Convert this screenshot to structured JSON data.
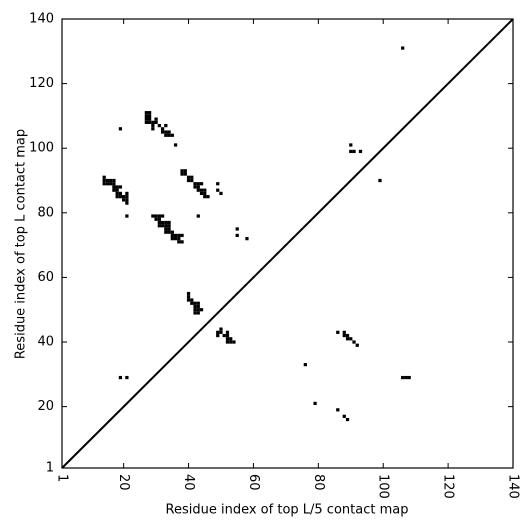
{
  "chart_data": {
    "type": "scatter",
    "xlabel": "Residue index of top L/5 contact map",
    "ylabel": "Residue index of top L contact map",
    "xlim": [
      1,
      140
    ],
    "ylim": [
      1,
      140
    ],
    "xticks": [
      1,
      20,
      40,
      60,
      80,
      100,
      120,
      140
    ],
    "yticks": [
      1,
      20,
      40,
      60,
      80,
      100,
      120,
      140
    ],
    "color": "#000000",
    "diagonal": true,
    "x": [
      27,
      28,
      27,
      28,
      27,
      28,
      27,
      28,
      29,
      30,
      30,
      29,
      29,
      31,
      32,
      33,
      32,
      33,
      34,
      33,
      34,
      35,
      19,
      36,
      90,
      90,
      91,
      93,
      99,
      106,
      14,
      14,
      15,
      16,
      17,
      14,
      15,
      16,
      17,
      17,
      18,
      17,
      18,
      19,
      18,
      19,
      18,
      19,
      20,
      21,
      21,
      20,
      21,
      21,
      21,
      38,
      39,
      38,
      39,
      40,
      40,
      41,
      41,
      42,
      42,
      43,
      44,
      43,
      43,
      44,
      45,
      44,
      45,
      45,
      46,
      49,
      49,
      50,
      43,
      29,
      30,
      31,
      32,
      30,
      31,
      31,
      32,
      33,
      34,
      31,
      32,
      33,
      34,
      33,
      34,
      33,
      34,
      35,
      35,
      36,
      37,
      38,
      35,
      36,
      37,
      37,
      38,
      55,
      55,
      58,
      40,
      40,
      40,
      41,
      41,
      42,
      43,
      42,
      43,
      42,
      43,
      44,
      42,
      43,
      50,
      49,
      50,
      52,
      49,
      51,
      52,
      52,
      53,
      52,
      53,
      54,
      76,
      86,
      88,
      88,
      89,
      89,
      90,
      91,
      92,
      19,
      21,
      106,
      107,
      108,
      79,
      86,
      88,
      89
    ],
    "y": [
      111,
      111,
      110,
      110,
      109,
      109,
      108,
      108,
      108,
      109,
      108,
      107,
      106,
      107,
      106,
      107,
      105,
      105,
      105,
      104,
      104,
      104,
      106,
      101,
      101,
      99,
      99,
      99,
      90,
      131,
      91,
      90,
      90,
      90,
      90,
      89,
      89,
      89,
      89,
      88,
      88,
      87,
      87,
      88,
      86,
      86,
      85,
      85,
      85,
      86,
      85,
      84,
      84,
      83,
      79,
      93,
      93,
      92,
      92,
      91,
      90,
      91,
      90,
      89,
      88,
      89,
      89,
      88,
      87,
      87,
      87,
      86,
      86,
      85,
      85,
      89,
      87,
      86,
      79,
      79,
      79,
      79,
      79,
      78,
      78,
      77,
      77,
      77,
      77,
      76,
      76,
      76,
      76,
      75,
      75,
      74,
      74,
      74,
      73,
      73,
      73,
      73,
      72,
      72,
      72,
      71,
      71,
      75,
      73,
      72,
      55,
      54,
      53,
      53,
      52,
      52,
      52,
      51,
      51,
      50,
      50,
      50,
      49,
      49,
      44,
      43,
      43,
      43,
      42,
      42,
      42,
      41,
      41,
      40,
      40,
      40,
      33,
      43,
      43,
      42,
      42,
      41,
      41,
      40,
      39,
      29,
      29,
      29,
      29,
      29,
      21,
      19,
      17,
      16
    ]
  }
}
